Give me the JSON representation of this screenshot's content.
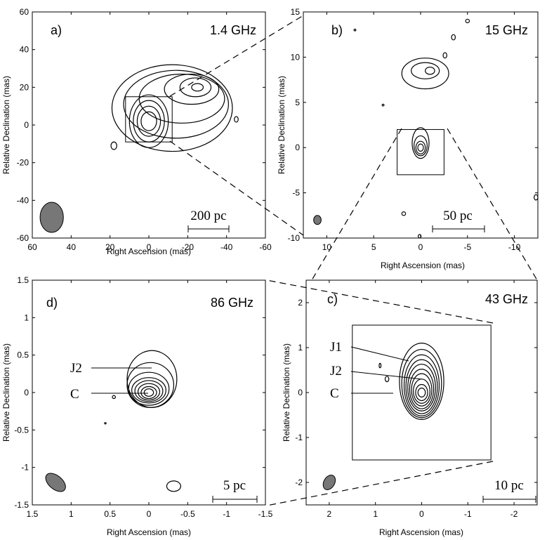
{
  "chart_data": [
    {
      "panel": "a",
      "type": "contour",
      "label": "a)",
      "frequency": "1.4 GHz",
      "xlabel": "Right Ascension (mas)",
      "ylabel": "Relative Declination (mas)",
      "xlim": [
        60,
        -60
      ],
      "ylim": [
        -60,
        60
      ],
      "xticks": [
        60,
        40,
        20,
        0,
        -20,
        -40,
        -60
      ],
      "yticks": [
        -60,
        -40,
        -20,
        0,
        20,
        40,
        60
      ],
      "scalebar": "200 pc",
      "beam": {
        "x": 50,
        "y": -49,
        "major": 8,
        "minor": 6,
        "pa": 0
      },
      "core": {
        "x": 0,
        "y": 2
      },
      "zoom_box": {
        "x1": 12,
        "x2": -12,
        "y1": 15,
        "y2": -9
      },
      "contours": [
        {
          "cx": 0,
          "cy": 2,
          "rx": 4,
          "ry": 5
        },
        {
          "cx": 0,
          "cy": 2,
          "rx": 6,
          "ry": 8
        },
        {
          "cx": 0,
          "cy": 2,
          "rx": 8,
          "ry": 11
        },
        {
          "cx": 0,
          "cy": 2,
          "rx": 10,
          "ry": 14
        },
        {
          "cx": -25,
          "cy": 20,
          "rx": 3,
          "ry": 2
        },
        {
          "cx": -24,
          "cy": 20,
          "rx": 8,
          "ry": 5
        },
        {
          "cx": -22,
          "cy": 19,
          "rx": 14,
          "ry": 8
        },
        {
          "cx": -17,
          "cy": 14,
          "rx": 22,
          "ry": 13
        },
        {
          "cx": -14,
          "cy": 11,
          "rx": 27,
          "ry": 18
        },
        {
          "cx": -12,
          "cy": 9,
          "rx": 31,
          "ry": 23
        },
        {
          "cx": 18,
          "cy": -11,
          "rx": 1.5,
          "ry": 2
        },
        {
          "cx": -45,
          "cy": 3,
          "rx": 1,
          "ry": 1.5
        }
      ]
    },
    {
      "panel": "b",
      "type": "contour",
      "label": "b)",
      "frequency": "15 GHz",
      "xlabel": "Right Ascension (mas)",
      "ylabel": "Relative Declination (mas)",
      "xlim": [
        12.5,
        -12.5
      ],
      "ylim": [
        -10,
        15
      ],
      "xticks": [
        10,
        5,
        0,
        -5,
        -10
      ],
      "yticks": [
        -10,
        -5,
        0,
        5,
        10,
        15
      ],
      "scalebar": "50 pc",
      "beam": {
        "x": 11,
        "y": -8,
        "major": 0.5,
        "minor": 0.4,
        "pa": 0
      },
      "core": {
        "x": 0,
        "y": 0
      },
      "zoom_box": {
        "x1": 2.5,
        "x2": -2.5,
        "y1": 2,
        "y2": -3
      },
      "contours": [
        {
          "cx": 0,
          "cy": 0,
          "rx": 0.3,
          "ry": 0.4
        },
        {
          "cx": 0,
          "cy": 0,
          "rx": 0.5,
          "ry": 0.7
        },
        {
          "cx": 0,
          "cy": 0.2,
          "rx": 0.7,
          "ry": 1.1
        },
        {
          "cx": 0,
          "cy": 0.5,
          "rx": 0.9,
          "ry": 1.7
        },
        {
          "cx": -1,
          "cy": 8.5,
          "rx": 0.5,
          "ry": 0.4
        },
        {
          "cx": -0.5,
          "cy": 8.5,
          "rx": 1.5,
          "ry": 0.9
        },
        {
          "cx": -0.5,
          "cy": 8.2,
          "rx": 2.5,
          "ry": 1.7
        },
        {
          "cx": -2.6,
          "cy": 10.2,
          "rx": 0.2,
          "ry": 0.3
        },
        {
          "cx": -5,
          "cy": 14,
          "rx": 0.2,
          "ry": 0.2
        },
        {
          "cx": -3.5,
          "cy": 12.2,
          "rx": 0.2,
          "ry": 0.3
        },
        {
          "cx": 7,
          "cy": 13,
          "rx": 0.1,
          "ry": 0.1
        },
        {
          "cx": 4,
          "cy": 4.7,
          "rx": 0.1,
          "ry": 0.1
        },
        {
          "cx": 1.8,
          "cy": -7.3,
          "rx": 0.2,
          "ry": 0.2
        },
        {
          "cx": 0.1,
          "cy": -9.8,
          "rx": 0.15,
          "ry": 0.2
        },
        {
          "cx": -12.3,
          "cy": -5.5,
          "rx": 0.2,
          "ry": 0.3
        }
      ]
    },
    {
      "panel": "c",
      "type": "contour",
      "label": "c)",
      "frequency": "43 GHz",
      "xlabel": "Right Ascension (mas)",
      "ylabel": "Relative Declination (mas)",
      "xlim": [
        2.5,
        -2.5
      ],
      "ylim": [
        -2.5,
        2.5
      ],
      "xticks": [
        2,
        1,
        0,
        -1,
        -2
      ],
      "yticks": [
        -2,
        -1,
        0,
        1,
        2
      ],
      "scalebar": "10 pc",
      "components": [
        "J1",
        "J2",
        "C"
      ],
      "beam": {
        "x": 2.0,
        "y": -2.0,
        "major": 0.17,
        "minor": 0.12,
        "pa": 0
      },
      "core": {
        "x": 0,
        "y": 0
      },
      "zoom_box": {
        "x1": 1.5,
        "x2": -1.5,
        "y1": 1.5,
        "y2": -1.5
      },
      "contours": [
        {
          "cx": 0,
          "cy": 0,
          "rx": 0.08,
          "ry": 0.1
        },
        {
          "cx": 0,
          "cy": 0,
          "rx": 0.13,
          "ry": 0.18
        },
        {
          "cx": 0,
          "cy": 0.03,
          "rx": 0.18,
          "ry": 0.27
        },
        {
          "cx": 0,
          "cy": 0.06,
          "rx": 0.22,
          "ry": 0.36
        },
        {
          "cx": 0,
          "cy": 0.08,
          "rx": 0.26,
          "ry": 0.44
        },
        {
          "cx": 0,
          "cy": 0.11,
          "rx": 0.3,
          "ry": 0.52
        },
        {
          "cx": 0,
          "cy": 0.13,
          "rx": 0.34,
          "ry": 0.6
        },
        {
          "cx": 0,
          "cy": 0.16,
          "rx": 0.38,
          "ry": 0.68
        },
        {
          "cx": 0,
          "cy": 0.2,
          "rx": 0.43,
          "ry": 0.76
        },
        {
          "cx": 0,
          "cy": 0.25,
          "rx": 0.48,
          "ry": 0.85
        },
        {
          "cx": 0.75,
          "cy": 0.3,
          "rx": 0.04,
          "ry": 0.06
        },
        {
          "cx": 0.9,
          "cy": 0.6,
          "rx": 0.02,
          "ry": 0.05
        }
      ]
    },
    {
      "panel": "d",
      "type": "contour",
      "label": "d)",
      "frequency": "86 GHz",
      "xlabel": "Right Ascension (mas)",
      "ylabel": "Relative Declination (mas)",
      "xlim": [
        1.5,
        -1.5
      ],
      "ylim": [
        -1.5,
        1.5
      ],
      "xticks": [
        1.5,
        1,
        0.5,
        0,
        -0.5,
        -1,
        -1.5
      ],
      "yticks": [
        -1.5,
        -1,
        -0.5,
        0,
        0.5,
        1,
        1.5
      ],
      "scalebar": "5 pc",
      "components": [
        "J2",
        "C"
      ],
      "beam": {
        "x": 1.2,
        "y": -1.2,
        "major": 0.15,
        "minor": 0.09,
        "pa": 0
      },
      "core": {
        "x": 0,
        "y": 0
      },
      "contours": [
        {
          "cx": 0,
          "cy": 0,
          "rx": 0.06,
          "ry": 0.05
        },
        {
          "cx": 0,
          "cy": 0,
          "rx": 0.1,
          "ry": 0.08
        },
        {
          "cx": 0,
          "cy": 0.01,
          "rx": 0.14,
          "ry": 0.11
        },
        {
          "cx": 0,
          "cy": 0.02,
          "rx": 0.18,
          "ry": 0.14
        },
        {
          "cx": 0,
          "cy": 0.03,
          "rx": 0.22,
          "ry": 0.17
        },
        {
          "cx": 0,
          "cy": 0.05,
          "rx": 0.26,
          "ry": 0.22
        },
        {
          "cx": -0.02,
          "cy": 0.1,
          "rx": 0.3,
          "ry": 0.3
        },
        {
          "cx": -0.04,
          "cy": 0.18,
          "rx": 0.32,
          "ry": 0.38
        },
        {
          "cx": 0.45,
          "cy": -0.06,
          "rx": 0.02,
          "ry": 0.02
        },
        {
          "cx": 0.56,
          "cy": -0.41,
          "rx": 0.01,
          "ry": 0.01
        },
        {
          "cx": -0.32,
          "cy": -1.25,
          "rx": 0.09,
          "ry": 0.07
        }
      ]
    }
  ]
}
